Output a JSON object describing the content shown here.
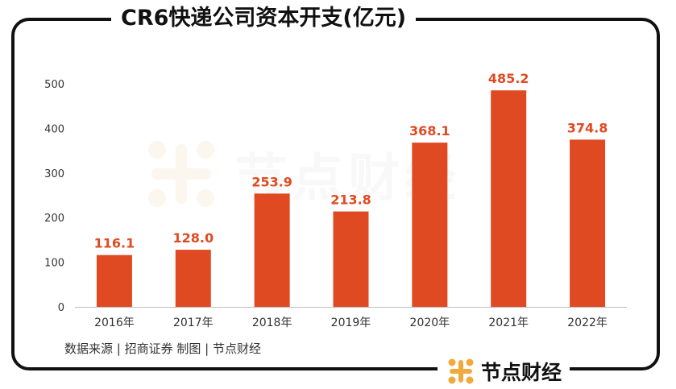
{
  "title": "CR6快递公司资本开支(亿元)",
  "source_note": "数据来源 | 招商证券   制图 | 节点财经",
  "brand": {
    "name": "节点财经",
    "icon": "grid-dots-logo-icon"
  },
  "watermark": {
    "text": "节点财经"
  },
  "colors": {
    "bar": "#E04A22",
    "label": "#E04A22",
    "axis": "#333333",
    "brand_icon": "#F2A93B"
  },
  "chart_data": {
    "type": "bar",
    "title": "CR6快递公司资本开支(亿元)",
    "categories": [
      "2016年",
      "2017年",
      "2018年",
      "2019年",
      "2020年",
      "2021年",
      "2022年"
    ],
    "values": [
      116.1,
      128.0,
      253.9,
      213.8,
      368.1,
      485.2,
      374.8
    ],
    "value_labels": [
      "116.1",
      "128.0",
      "253.9",
      "213.8",
      "368.1",
      "485.2",
      "374.8"
    ],
    "yticks": [
      "0",
      "100",
      "200",
      "300",
      "400",
      "500"
    ],
    "ylim": [
      0,
      500
    ],
    "xlabel": "",
    "ylabel": "",
    "grid": false,
    "legend": "none"
  }
}
